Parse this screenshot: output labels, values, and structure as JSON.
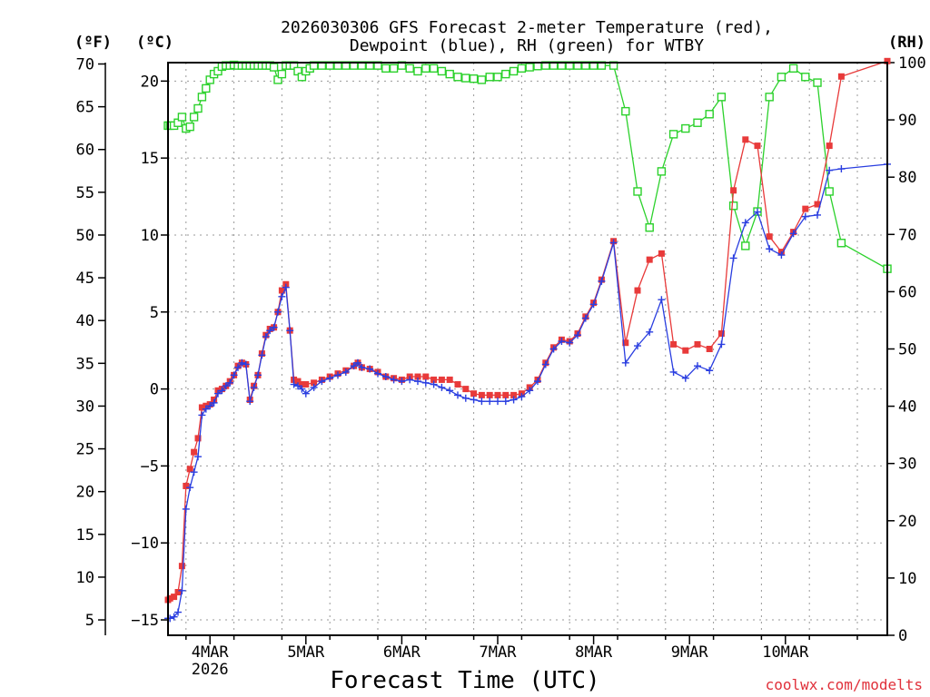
{
  "chart_data": {
    "type": "line",
    "title_line1": "2026030306 GFS Forecast 2-meter Temperature (red),",
    "title_line2": "Dewpoint (blue), RH (green) for WTBY",
    "xlabel": "Forecast Time (UTC)",
    "credit": "coolwx.com/modelts",
    "axis_labels": {
      "f": "(ºF)",
      "c": "(ºC)",
      "rh": "(RH)"
    },
    "x_hours_range": [
      7.5,
      187.5
    ],
    "x_ticks": [
      {
        "hour": 18,
        "label": "4MAR",
        "sub": "2026"
      },
      {
        "hour": 42,
        "label": "5MAR",
        "sub": ""
      },
      {
        "hour": 66,
        "label": "6MAR",
        "sub": ""
      },
      {
        "hour": 90,
        "label": "7MAR",
        "sub": ""
      },
      {
        "hour": 114,
        "label": "8MAR",
        "sub": ""
      },
      {
        "hour": 138,
        "label": "9MAR",
        "sub": ""
      },
      {
        "hour": 162,
        "label": "10MAR",
        "sub": ""
      }
    ],
    "celsius_range": [
      -16.0,
      21.2
    ],
    "celsius_ticks": [
      "-15",
      "-10",
      "-5",
      "0",
      "5",
      "10",
      "15",
      "20"
    ],
    "fahrenheit_ticks": [
      "5",
      "10",
      "15",
      "20",
      "25",
      "30",
      "35",
      "40",
      "45",
      "50",
      "55",
      "60",
      "65",
      "70"
    ],
    "rh_range": [
      0,
      100
    ],
    "rh_ticks": [
      "0",
      "10",
      "20",
      "30",
      "40",
      "50",
      "60",
      "70",
      "80",
      "90",
      "100"
    ],
    "colors": {
      "temperature": "#e83a3a",
      "dewpoint": "#2a3ee0",
      "rh": "#2bd12b",
      "grid": "#999999"
    },
    "series": [
      {
        "name": "Temperature",
        "unit": "C",
        "points": [
          [
            7.5,
            -13.7
          ],
          [
            8,
            -13.6
          ],
          [
            9,
            -13.5
          ],
          [
            10,
            -13.2
          ],
          [
            11,
            -11.5
          ],
          [
            12,
            -6.3
          ],
          [
            13,
            -5.2
          ],
          [
            14,
            -4.1
          ],
          [
            15,
            -3.2
          ],
          [
            16,
            -1.2
          ],
          [
            17,
            -1.1
          ],
          [
            18,
            -1.0
          ],
          [
            19,
            -0.7
          ],
          [
            20,
            -0.1
          ],
          [
            21,
            0.0
          ],
          [
            22,
            0.2
          ],
          [
            23,
            0.5
          ],
          [
            24,
            0.9
          ],
          [
            25,
            1.5
          ],
          [
            26,
            1.7
          ],
          [
            27,
            1.6
          ],
          [
            28,
            -0.7
          ],
          [
            29,
            0.2
          ],
          [
            30,
            0.9
          ],
          [
            31,
            2.3
          ],
          [
            32,
            3.5
          ],
          [
            33,
            3.9
          ],
          [
            34,
            4.0
          ],
          [
            35,
            5.0
          ],
          [
            36,
            6.4
          ],
          [
            37,
            6.8
          ],
          [
            38,
            3.8
          ],
          [
            39,
            0.6
          ],
          [
            40,
            0.5
          ],
          [
            41,
            0.3
          ],
          [
            42,
            0.3
          ],
          [
            44,
            0.4
          ],
          [
            46,
            0.6
          ],
          [
            48,
            0.8
          ],
          [
            50,
            1.0
          ],
          [
            52,
            1.2
          ],
          [
            54,
            1.5
          ],
          [
            55,
            1.7
          ],
          [
            56,
            1.4
          ],
          [
            58,
            1.3
          ],
          [
            60,
            1.1
          ],
          [
            62,
            0.8
          ],
          [
            64,
            0.7
          ],
          [
            66,
            0.6
          ],
          [
            68,
            0.8
          ],
          [
            70,
            0.8
          ],
          [
            72,
            0.8
          ],
          [
            74,
            0.6
          ],
          [
            76,
            0.6
          ],
          [
            78,
            0.6
          ],
          [
            80,
            0.3
          ],
          [
            82,
            0.0
          ],
          [
            84,
            -0.3
          ],
          [
            86,
            -0.4
          ],
          [
            88,
            -0.4
          ],
          [
            90,
            -0.4
          ],
          [
            92,
            -0.4
          ],
          [
            94,
            -0.4
          ],
          [
            96,
            -0.3
          ],
          [
            98,
            0.1
          ],
          [
            100,
            0.6
          ],
          [
            102,
            1.7
          ],
          [
            104,
            2.7
          ],
          [
            106,
            3.2
          ],
          [
            108,
            3.1
          ],
          [
            110,
            3.6
          ],
          [
            112,
            4.7
          ],
          [
            114,
            5.6
          ],
          [
            116,
            7.1
          ],
          [
            119,
            9.6
          ],
          [
            122,
            3.0
          ],
          [
            125,
            6.4
          ],
          [
            128,
            8.4
          ],
          [
            131,
            8.8
          ],
          [
            134,
            2.9
          ],
          [
            137,
            2.5
          ],
          [
            140,
            2.9
          ],
          [
            143,
            2.6
          ],
          [
            146,
            3.6
          ],
          [
            149,
            12.9
          ],
          [
            152,
            16.2
          ],
          [
            155,
            15.8
          ],
          [
            158,
            9.9
          ],
          [
            161,
            8.9
          ],
          [
            164,
            10.2
          ],
          [
            167,
            11.7
          ],
          [
            170,
            12.0
          ],
          [
            173,
            15.8
          ],
          [
            176,
            20.3
          ],
          [
            187.5,
            21.3
          ]
        ]
      },
      {
        "name": "Dewpoint",
        "unit": "C",
        "points": [
          [
            7.5,
            -14.9
          ],
          [
            8,
            -14.9
          ],
          [
            9,
            -14.8
          ],
          [
            10,
            -14.5
          ],
          [
            11,
            -13.1
          ],
          [
            12,
            -7.8
          ],
          [
            13,
            -6.4
          ],
          [
            14,
            -5.4
          ],
          [
            15,
            -4.4
          ],
          [
            16,
            -1.7
          ],
          [
            17,
            -1.3
          ],
          [
            18,
            -1.1
          ],
          [
            19,
            -0.9
          ],
          [
            20,
            -0.3
          ],
          [
            21,
            -0.1
          ],
          [
            22,
            0.2
          ],
          [
            23,
            0.4
          ],
          [
            24,
            0.9
          ],
          [
            25,
            1.4
          ],
          [
            26,
            1.7
          ],
          [
            27,
            1.6
          ],
          [
            28,
            -0.8
          ],
          [
            29,
            0.1
          ],
          [
            30,
            0.9
          ],
          [
            31,
            2.2
          ],
          [
            32,
            3.4
          ],
          [
            33,
            3.8
          ],
          [
            34,
            4.0
          ],
          [
            35,
            5.0
          ],
          [
            36,
            6.0
          ],
          [
            37,
            6.6
          ],
          [
            38,
            3.8
          ],
          [
            39,
            0.3
          ],
          [
            40,
            0.2
          ],
          [
            41,
            0.0
          ],
          [
            42,
            -0.3
          ],
          [
            44,
            0.1
          ],
          [
            46,
            0.5
          ],
          [
            48,
            0.7
          ],
          [
            50,
            0.9
          ],
          [
            52,
            1.1
          ],
          [
            54,
            1.5
          ],
          [
            55,
            1.7
          ],
          [
            56,
            1.4
          ],
          [
            58,
            1.3
          ],
          [
            60,
            1.0
          ],
          [
            62,
            0.8
          ],
          [
            64,
            0.6
          ],
          [
            66,
            0.5
          ],
          [
            68,
            0.6
          ],
          [
            70,
            0.5
          ],
          [
            72,
            0.4
          ],
          [
            74,
            0.3
          ],
          [
            76,
            0.1
          ],
          [
            78,
            -0.1
          ],
          [
            80,
            -0.4
          ],
          [
            82,
            -0.6
          ],
          [
            84,
            -0.7
          ],
          [
            86,
            -0.8
          ],
          [
            88,
            -0.8
          ],
          [
            90,
            -0.8
          ],
          [
            92,
            -0.8
          ],
          [
            94,
            -0.7
          ],
          [
            96,
            -0.5
          ],
          [
            98,
            -0.1
          ],
          [
            100,
            0.5
          ],
          [
            102,
            1.6
          ],
          [
            104,
            2.6
          ],
          [
            106,
            3.1
          ],
          [
            108,
            3.0
          ],
          [
            110,
            3.5
          ],
          [
            112,
            4.6
          ],
          [
            114,
            5.5
          ],
          [
            116,
            7.0
          ],
          [
            119,
            9.5
          ],
          [
            122,
            1.7
          ],
          [
            125,
            2.8
          ],
          [
            128,
            3.7
          ],
          [
            131,
            5.8
          ],
          [
            134,
            1.1
          ],
          [
            137,
            0.7
          ],
          [
            140,
            1.5
          ],
          [
            143,
            1.2
          ],
          [
            146,
            2.9
          ],
          [
            149,
            8.5
          ],
          [
            152,
            10.8
          ],
          [
            155,
            11.5
          ],
          [
            158,
            9.1
          ],
          [
            161,
            8.7
          ],
          [
            164,
            10.1
          ],
          [
            167,
            11.2
          ],
          [
            170,
            11.3
          ],
          [
            173,
            14.2
          ],
          [
            176,
            14.3
          ],
          [
            187.5,
            14.6
          ]
        ]
      },
      {
        "name": "RH",
        "unit": "%",
        "points": [
          [
            7.5,
            89
          ],
          [
            8,
            89
          ],
          [
            9,
            89
          ],
          [
            10,
            89.5
          ],
          [
            11,
            90.5
          ],
          [
            12,
            88.5
          ],
          [
            13,
            88.8
          ],
          [
            14,
            90.5
          ],
          [
            15,
            92
          ],
          [
            16,
            94
          ],
          [
            17,
            95.5
          ],
          [
            18,
            97
          ],
          [
            19,
            98
          ],
          [
            20,
            98.5
          ],
          [
            21,
            99.3
          ],
          [
            22,
            99.5
          ],
          [
            23,
            99.5
          ],
          [
            24,
            99.6
          ],
          [
            25,
            99.5
          ],
          [
            26,
            99.5
          ],
          [
            27,
            99.5
          ],
          [
            28,
            99.5
          ],
          [
            29,
            99.5
          ],
          [
            30,
            99.5
          ],
          [
            31,
            99.5
          ],
          [
            32,
            99.5
          ],
          [
            33,
            99.5
          ],
          [
            34,
            99.2
          ],
          [
            35,
            97
          ],
          [
            36,
            98
          ],
          [
            37,
            99.5
          ],
          [
            38,
            99.5
          ],
          [
            39,
            99.5
          ],
          [
            40,
            98.5
          ],
          [
            41,
            97.5
          ],
          [
            42,
            98.5
          ],
          [
            43,
            99
          ],
          [
            44,
            99.5
          ],
          [
            46,
            99.5
          ],
          [
            48,
            99.5
          ],
          [
            50,
            99.5
          ],
          [
            52,
            99.5
          ],
          [
            54,
            99.5
          ],
          [
            56,
            99.5
          ],
          [
            58,
            99.5
          ],
          [
            60,
            99.5
          ],
          [
            62,
            99
          ],
          [
            64,
            99
          ],
          [
            66,
            99.5
          ],
          [
            68,
            99
          ],
          [
            70,
            98.5
          ],
          [
            72,
            99
          ],
          [
            74,
            99
          ],
          [
            76,
            98.5
          ],
          [
            78,
            98
          ],
          [
            80,
            97.5
          ],
          [
            82,
            97.3
          ],
          [
            84,
            97.2
          ],
          [
            86,
            97
          ],
          [
            88,
            97.5
          ],
          [
            90,
            97.5
          ],
          [
            92,
            98
          ],
          [
            94,
            98.5
          ],
          [
            96,
            99
          ],
          [
            98,
            99.2
          ],
          [
            100,
            99.4
          ],
          [
            102,
            99.5
          ],
          [
            104,
            99.5
          ],
          [
            106,
            99.5
          ],
          [
            108,
            99.5
          ],
          [
            110,
            99.5
          ],
          [
            112,
            99.5
          ],
          [
            114,
            99.5
          ],
          [
            116,
            99.5
          ],
          [
            119,
            99.5
          ],
          [
            122,
            91.5
          ],
          [
            125,
            77.5
          ],
          [
            128,
            71.2
          ],
          [
            131,
            81
          ],
          [
            134,
            87.5
          ],
          [
            137,
            88.5
          ],
          [
            140,
            89.5
          ],
          [
            143,
            91
          ],
          [
            146,
            94
          ],
          [
            149,
            75
          ],
          [
            152,
            68
          ],
          [
            155,
            74
          ],
          [
            158,
            94
          ],
          [
            161,
            97.5
          ],
          [
            164,
            99
          ],
          [
            167,
            97.5
          ],
          [
            170,
            96.5
          ],
          [
            173,
            77.5
          ],
          [
            176,
            68.5
          ],
          [
            187.5,
            64
          ]
        ]
      }
    ]
  }
}
